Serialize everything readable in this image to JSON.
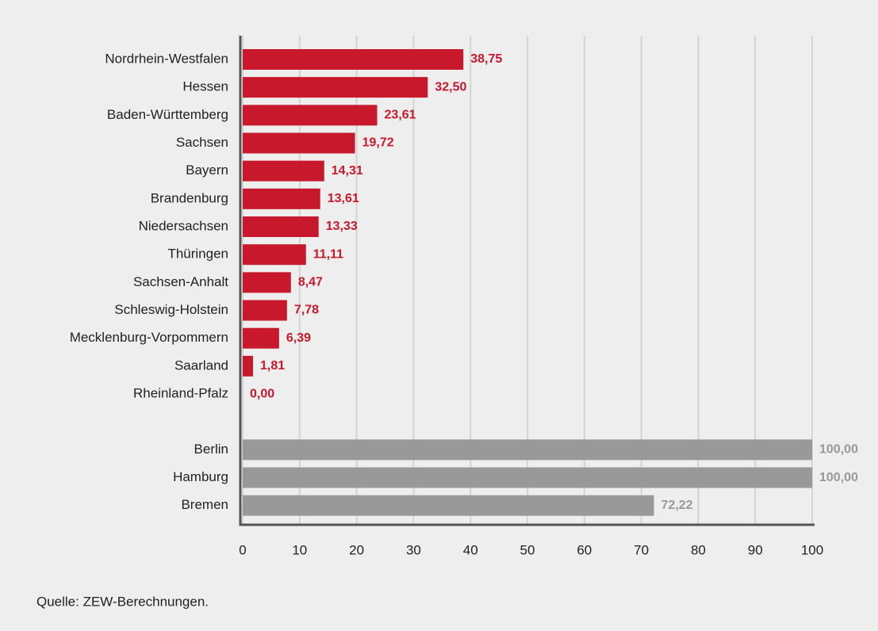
{
  "chart_data": {
    "type": "bar",
    "orientation": "horizontal",
    "categories": [
      "Nordrhein-Westfalen",
      "Hessen",
      "Baden-Württemberg",
      "Sachsen",
      "Bayern",
      "Brandenburg",
      "Niedersachsen",
      "Thüringen",
      "Sachsen-Anhalt",
      "Schleswig-Holstein",
      "Mecklenburg-Vorpommern",
      "Saarland",
      "Rheinland-Pfalz",
      "Berlin",
      "Hamburg",
      "Bremen"
    ],
    "values": [
      38.75,
      32.5,
      23.61,
      19.72,
      14.31,
      13.61,
      13.33,
      11.11,
      8.47,
      7.78,
      6.39,
      1.81,
      0,
      100,
      100,
      72.22
    ],
    "value_labels": [
      "38,75",
      "32,50",
      "23,61",
      "19,72",
      "14,31",
      "13,61",
      "13,33",
      "11,11",
      "8,47",
      "7,78",
      "6,39",
      "1,81",
      "0,00",
      "100,00",
      "100,00",
      "72,22"
    ],
    "colors": [
      "#c8192c",
      "#c8192c",
      "#c8192c",
      "#c8192c",
      "#c8192c",
      "#c8192c",
      "#c8192c",
      "#c8192c",
      "#c8192c",
      "#c8192c",
      "#c8192c",
      "#c8192c",
      "#c8192c",
      "#999999",
      "#999999",
      "#999999"
    ],
    "xlim": [
      0,
      100
    ],
    "xticks": [
      0,
      10,
      20,
      30,
      40,
      50,
      60,
      70,
      80,
      90,
      100
    ],
    "grid": true,
    "source": "Quelle: ZEW-Berechnungen."
  }
}
